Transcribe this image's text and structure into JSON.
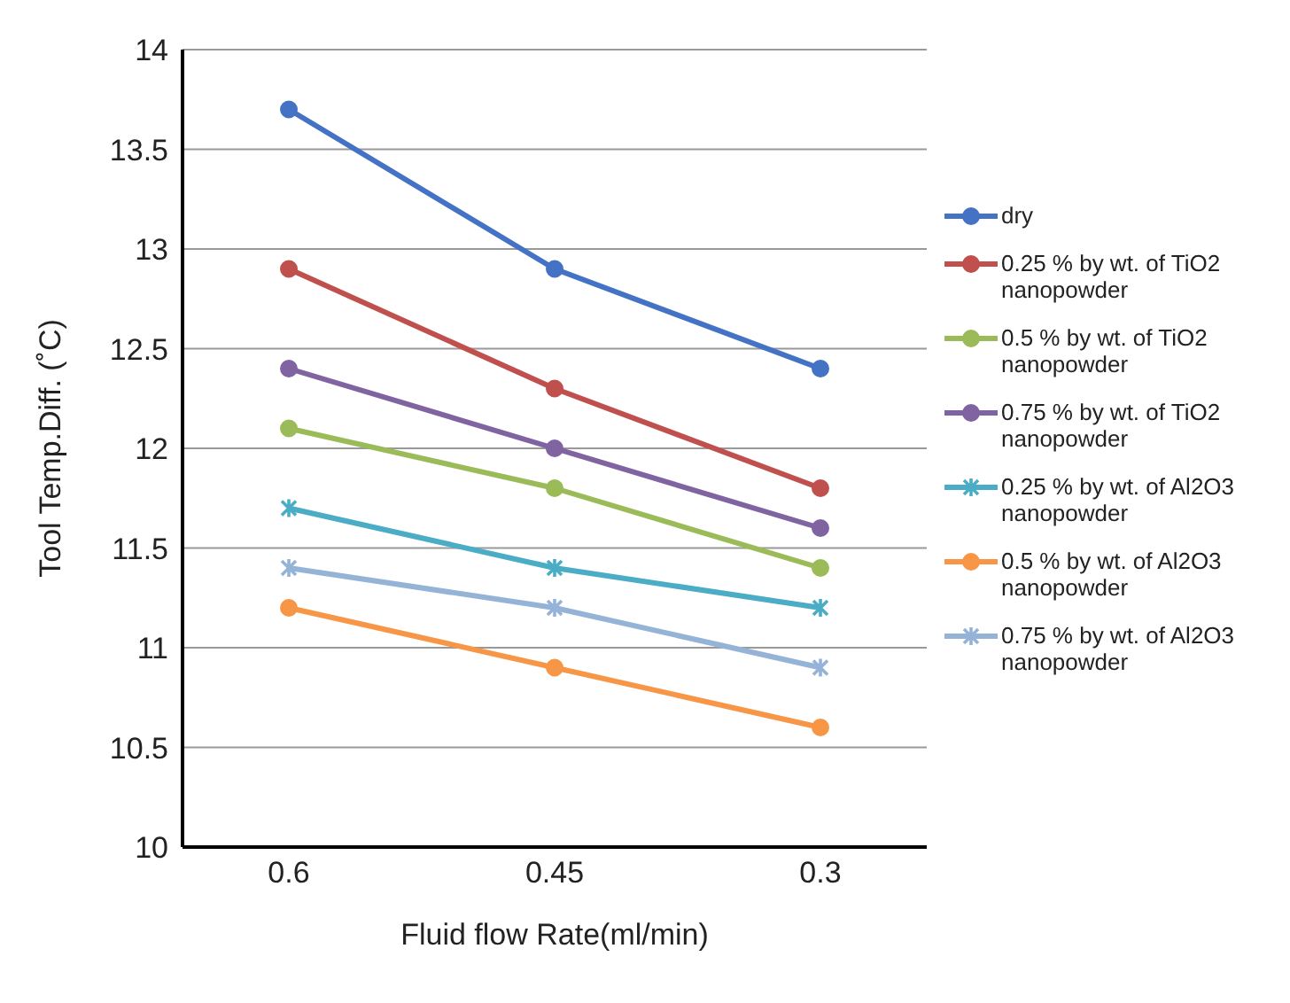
{
  "chart_data": {
    "type": "line",
    "xlabel": "Fluid flow Rate(ml/min)",
    "ylabel": "Tool Temp.Diff. (˚C)",
    "categories": [
      "0.6",
      "0.45",
      "0.3"
    ],
    "ylim": [
      10,
      14
    ],
    "yticks": [
      10,
      10.5,
      11,
      11.5,
      12,
      12.5,
      13,
      13.5,
      14
    ],
    "grid": "y",
    "legend": "right",
    "marker": "circle",
    "line_style": "solid",
    "series": [
      {
        "name": "dry",
        "color": "#4472c4",
        "values": [
          13.7,
          12.9,
          12.4
        ]
      },
      {
        "name": "0.25 % by wt. of TiO2 nanopowder",
        "color": "#c0504d",
        "values": [
          12.9,
          12.3,
          11.8
        ]
      },
      {
        "name": "0.5 % by wt. of TiO2 nanopowder",
        "color": "#9bbb59",
        "values": [
          12.1,
          11.8,
          11.4
        ]
      },
      {
        "name": "0.75 % by wt. of TiO2 nanopowder",
        "color": "#8064a2",
        "values": [
          12.4,
          12.0,
          11.6
        ]
      },
      {
        "name": "0.25 % by wt. of Al2O3 nanopowder",
        "color": "#4bacc6",
        "values": [
          11.7,
          11.4,
          11.2
        ],
        "marker": "cross"
      },
      {
        "name": "0.5 % by wt. of Al2O3 nanopowder",
        "color": "#f79646",
        "values": [
          11.2,
          10.9,
          10.6
        ]
      },
      {
        "name": "0.75 % by wt. of Al2O3 nanopowder",
        "color": "#95b3d7",
        "values": [
          11.4,
          11.2,
          10.9
        ],
        "marker": "cross"
      }
    ]
  }
}
